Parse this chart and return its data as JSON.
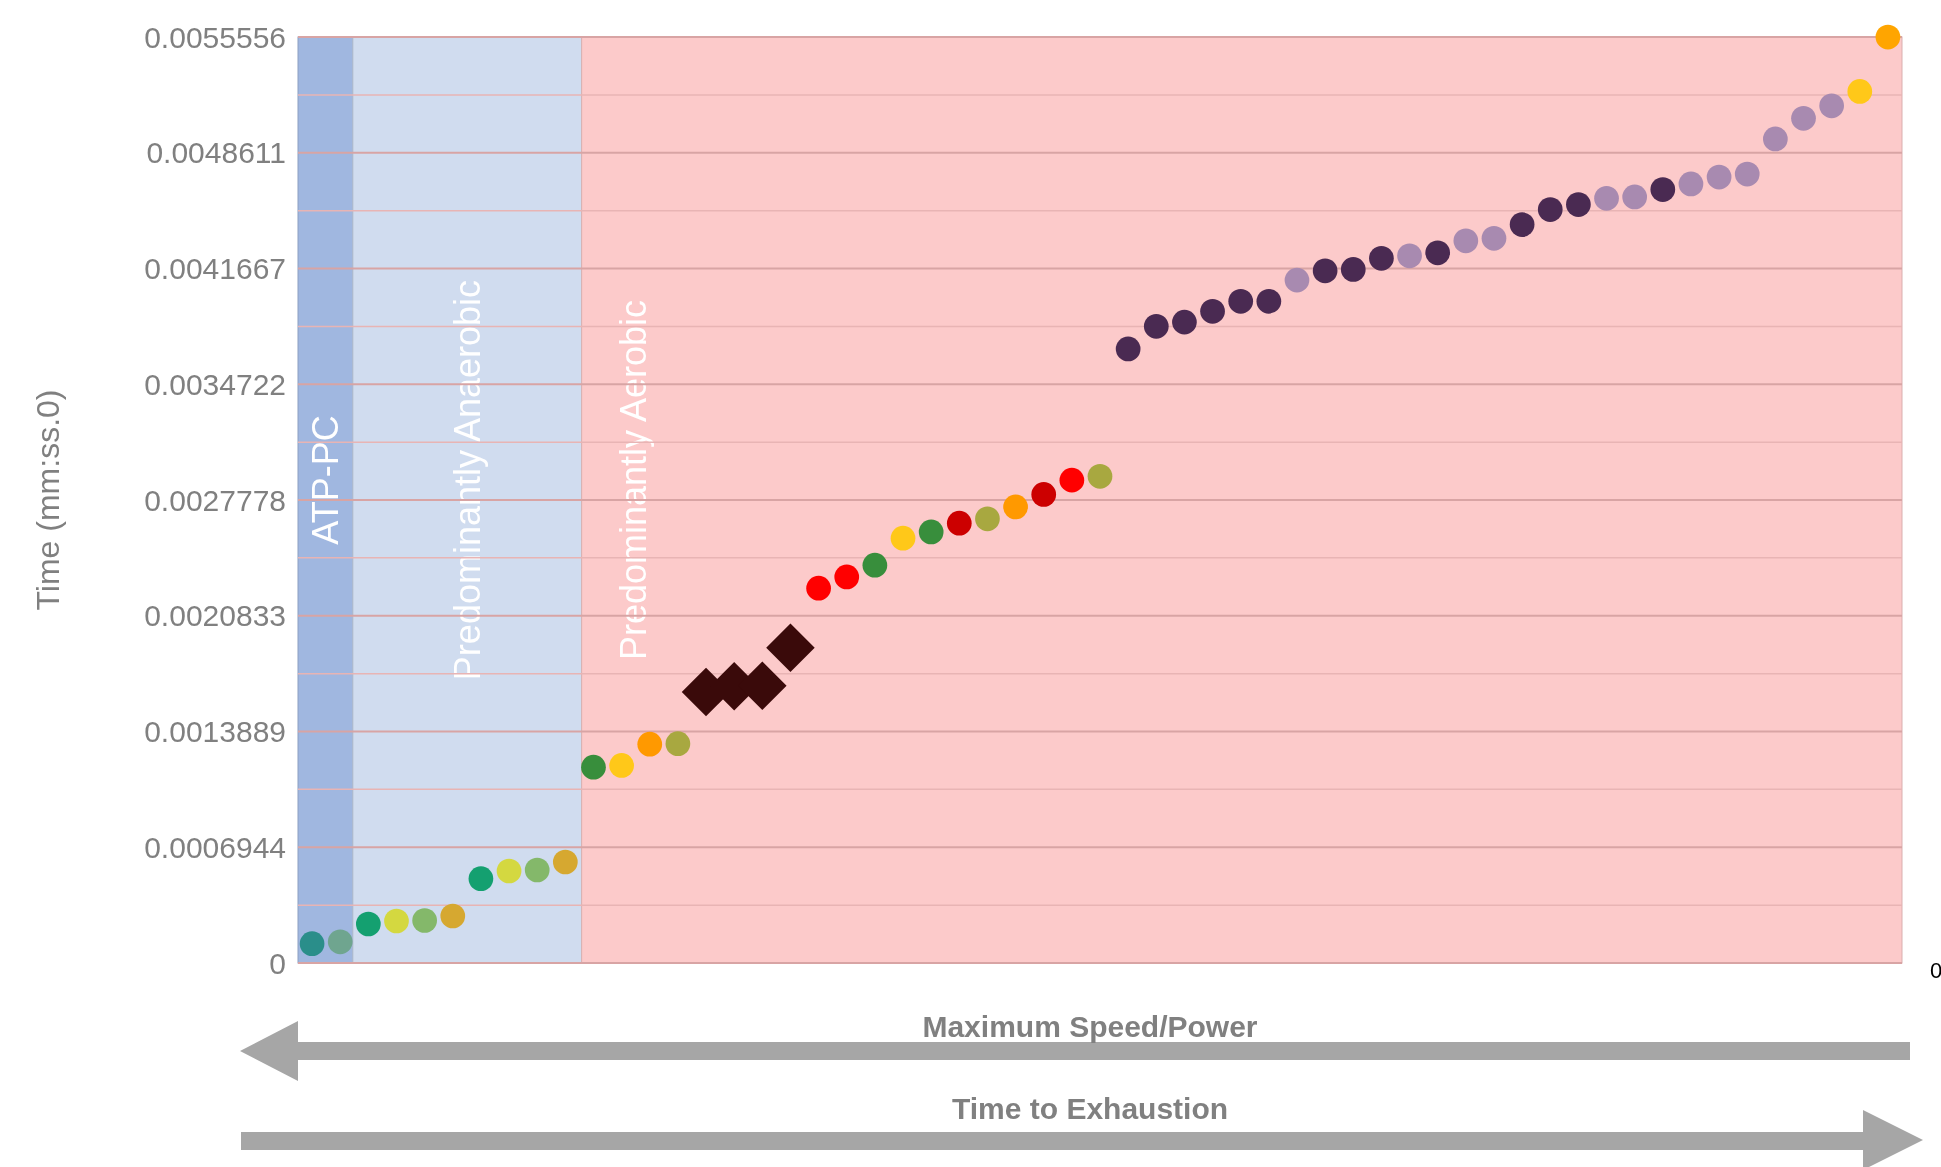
{
  "chart_data": {
    "type": "scatter",
    "ylabel": "Time (mm:ss.0)",
    "ylim": [
      0,
      0.0055556
    ],
    "categories": [
      null,
      null,
      null,
      null,
      null,
      null,
      null,
      null,
      null,
      null,
      null,
      null,
      null,
      null,
      null,
      null,
      null,
      null,
      null,
      null,
      null,
      null,
      null,
      null,
      null,
      null,
      null,
      null,
      null,
      null,
      null,
      null,
      null,
      null,
      null,
      null,
      null,
      null,
      null,
      null,
      null,
      null,
      null,
      null,
      null,
      null,
      null,
      null,
      null,
      null,
      null,
      null,
      null,
      null,
      null,
      null,
      null
    ],
    "yticks": [
      0,
      {
        "value": 0.0003472,
        "label": null
      },
      0.0006944,
      {
        "value": 0.0010417,
        "label": null
      },
      0.0013889,
      {
        "value": 0.0017361,
        "label": null
      },
      0.0020833,
      {
        "value": 0.0024306,
        "label": null
      },
      0.0027778,
      {
        "value": 0.003125,
        "label": null
      },
      0.0034722,
      {
        "value": 0.0038194,
        "label": null
      },
      0.0041667,
      {
        "value": 0.0045139,
        "label": null
      },
      0.0048611,
      {
        "value": 0.0052083,
        "label": null
      },
      0.0055556
    ],
    "tick_labels": "y",
    "grid": "y",
    "series": [
      {
        "marker": "circle",
        "values": [
          0.000116,
          0.000127,
          0.000234,
          0.000252,
          0.000255,
          0.000282,
          0.000506,
          0.000552,
          0.000558,
          0.000606,
          0.001175,
          0.001185,
          0.001313,
          0.001316,
          null,
          null,
          null,
          null,
          0.002249,
          0.002316,
          0.002387,
          0.002549,
          0.002586,
          0.002639,
          0.002665,
          0.002736,
          0.002811,
          0.002897,
          0.00292,
          0.003684,
          0.00382,
          0.003845,
          0.00391,
          0.00397,
          0.00397,
          0.004097,
          0.004153,
          0.004161,
          0.004228,
          0.004243,
          0.004261,
          0.004333,
          0.004348,
          0.00443,
          0.00452,
          0.00455,
          0.004588,
          0.004596,
          0.00464,
          0.004674,
          0.004715,
          0.004733,
          0.004944,
          0.005068,
          0.005143,
          0.005229,
          0.005555
        ],
        "colors": [
          "#2a8e8a",
          "#6fa58f",
          "#14a070",
          "#d4d840",
          "#84b86a",
          "#d6a830",
          "#14a070",
          "#d4d840",
          "#84b86a",
          "#d6a830",
          "#388e3c",
          "#ffc819",
          "#ff9900",
          "#a8a840",
          null,
          null,
          null,
          null,
          "#ff0000",
          "#ff0000",
          "#388e3c",
          "#ffc819",
          "#388e3c",
          "#cc0000",
          "#a8a840",
          "#ff9900",
          "#cc0000",
          "#ff0000",
          "#a8a840",
          "#4a2a52",
          "#4a2a52",
          "#4a2a52",
          "#4a2a52",
          "#4a2a52",
          "#4a2a52",
          "#a88ab0",
          "#4a2a52",
          "#4a2a52",
          "#4a2a52",
          "#a88ab0",
          "#4a2a52",
          "#a88ab0",
          "#a88ab0",
          "#4a2a52",
          "#4a2a52",
          "#4a2a52",
          "#a88ab0",
          "#a88ab0",
          "#4a2a52",
          "#a88ab0",
          "#a88ab0",
          "#a88ab0",
          "#a88ab0",
          "#a88ab0",
          "#a88ab0",
          "#ffc819",
          "#ffa500"
        ]
      },
      {
        "marker": "diamond",
        "color": "#3a0a0a",
        "values": [
          null,
          null,
          null,
          null,
          null,
          null,
          null,
          null,
          null,
          null,
          null,
          null,
          null,
          null,
          0.001626,
          0.001661,
          0.001664,
          0.001892,
          null,
          null,
          null,
          null,
          null,
          null,
          null,
          null,
          null,
          null,
          null,
          null,
          null,
          null,
          null,
          null,
          null,
          null,
          null,
          null,
          null,
          null,
          null,
          null,
          null,
          null,
          null,
          null,
          null,
          null,
          null,
          null,
          null,
          null,
          null,
          null,
          null,
          null,
          null
        ]
      }
    ],
    "annotations": [
      "ATP-PC",
      "Predominantly Anaerobic",
      "Predominantly Aerobic",
      "Maximum Speed/Power",
      "Time to Exhaustion",
      "0"
    ]
  }
}
